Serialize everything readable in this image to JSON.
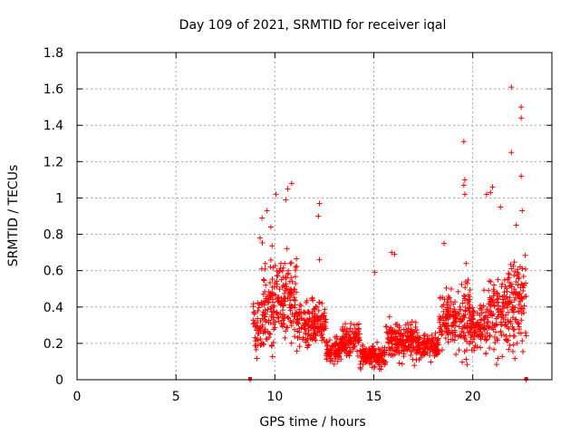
{
  "chart_data": {
    "type": "scatter",
    "title": "Day 109 of 2021, SRMTID for receiver iqal",
    "xlabel": "GPS time / hours",
    "ylabel": "SRMTID / TECUs",
    "xlim": [
      0,
      24
    ],
    "ylim": [
      0,
      1.8
    ],
    "x_ticks": [
      0,
      5,
      10,
      15,
      20
    ],
    "x_tick_labels": [
      "0",
      "5",
      "10",
      "15",
      "20"
    ],
    "y_ticks": [
      0,
      0.2,
      0.4,
      0.6,
      0.8,
      1.0,
      1.2,
      1.4,
      1.6,
      1.8
    ],
    "y_tick_labels": [
      "0",
      "0.2",
      "0.4",
      "0.6",
      "0.8",
      "1",
      "1.2",
      "1.4",
      "1.6",
      "1.8"
    ],
    "grid": true,
    "marker": "plus",
    "color": "#ff0000",
    "outliers": [
      [
        8.75,
        0.0
      ],
      [
        22.7,
        0.0
      ],
      [
        10.05,
        1.02
      ],
      [
        10.65,
        1.05
      ],
      [
        10.85,
        1.08
      ],
      [
        10.55,
        0.99
      ],
      [
        12.25,
        0.97
      ],
      [
        12.2,
        0.9
      ],
      [
        19.55,
        1.31
      ],
      [
        19.6,
        1.1
      ],
      [
        19.55,
        1.07
      ],
      [
        19.6,
        1.02
      ],
      [
        21.0,
        1.06
      ],
      [
        20.9,
        1.03
      ],
      [
        20.7,
        1.02
      ],
      [
        21.95,
        1.61
      ],
      [
        21.95,
        1.25
      ],
      [
        22.45,
        1.5
      ],
      [
        22.45,
        1.44
      ],
      [
        22.45,
        1.12
      ],
      [
        22.5,
        0.93
      ],
      [
        22.2,
        0.85
      ],
      [
        21.4,
        0.95
      ],
      [
        15.9,
        0.7
      ],
      [
        16.05,
        0.69
      ],
      [
        18.55,
        0.75
      ],
      [
        15.05,
        0.59
      ],
      [
        12.25,
        0.66
      ],
      [
        9.25,
        0.78
      ],
      [
        9.35,
        0.89
      ],
      [
        9.6,
        0.93
      ],
      [
        9.8,
        0.84
      ]
    ],
    "segments": [
      {
        "x0": 8.9,
        "x1": 9.3,
        "mean": 0.3,
        "spread": 0.22,
        "density": 20
      },
      {
        "x0": 9.3,
        "x1": 10.1,
        "mean": 0.42,
        "spread": 0.38,
        "density": 24
      },
      {
        "x0": 10.1,
        "x1": 11.1,
        "mean": 0.45,
        "spread": 0.35,
        "density": 24
      },
      {
        "x0": 11.1,
        "x1": 12.0,
        "mean": 0.3,
        "spread": 0.18,
        "density": 22
      },
      {
        "x0": 12.0,
        "x1": 12.6,
        "mean": 0.3,
        "spread": 0.22,
        "density": 22
      },
      {
        "x0": 12.6,
        "x1": 13.4,
        "mean": 0.16,
        "spread": 0.1,
        "density": 22
      },
      {
        "x0": 13.4,
        "x1": 14.3,
        "mean": 0.22,
        "spread": 0.14,
        "density": 22
      },
      {
        "x0": 14.3,
        "x1": 15.6,
        "mean": 0.13,
        "spread": 0.09,
        "density": 22
      },
      {
        "x0": 15.6,
        "x1": 17.2,
        "mean": 0.22,
        "spread": 0.16,
        "density": 22
      },
      {
        "x0": 17.2,
        "x1": 18.3,
        "mean": 0.18,
        "spread": 0.1,
        "density": 22
      },
      {
        "x0": 18.3,
        "x1": 19.4,
        "mean": 0.33,
        "spread": 0.22,
        "density": 22
      },
      {
        "x0": 19.4,
        "x1": 19.9,
        "mean": 0.3,
        "spread": 0.38,
        "density": 26
      },
      {
        "x0": 19.9,
        "x1": 20.7,
        "mean": 0.3,
        "spread": 0.24,
        "density": 22
      },
      {
        "x0": 20.7,
        "x1": 21.7,
        "mean": 0.35,
        "spread": 0.3,
        "density": 22
      },
      {
        "x0": 21.7,
        "x1": 22.7,
        "mean": 0.42,
        "spread": 0.36,
        "density": 24
      }
    ]
  }
}
